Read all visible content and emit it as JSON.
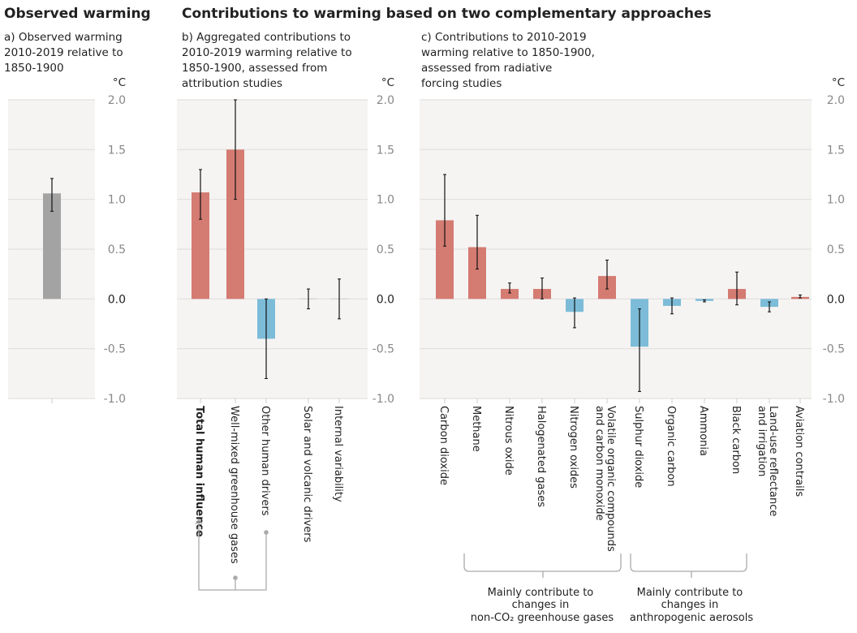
{
  "titles": {
    "left": "Observed warming",
    "right": "Contributions to warming based on two complementary approaches"
  },
  "unit": "°C",
  "colors": {
    "observed": "#a3a3a3",
    "warming": "#d47b72",
    "cooling": "#7cbcd8",
    "panel_bg": "#f5f4f3",
    "grid": "#e2e0dd"
  },
  "chart_data": [
    {
      "type": "bar",
      "panel": "a",
      "title_lines": [
        "a) Observed warming",
        "2010-2019 relative to",
        "1850-1900"
      ],
      "ylabel": "°C",
      "ylim": [
        -1.0,
        2.0
      ],
      "yticks": [
        "2.0",
        "1.5",
        "1.0",
        "0.5",
        "0.0",
        "-0.5",
        "-1.0"
      ],
      "grid": true,
      "categories": [
        ""
      ],
      "values": [
        1.06
      ],
      "error_low": [
        0.88
      ],
      "error_high": [
        1.21
      ]
    },
    {
      "type": "bar",
      "panel": "b",
      "title_lines": [
        "b) Aggregated contributions to",
        "2010-2019 warming relative to",
        "1850-1900, assessed from",
        "attribution studies"
      ],
      "ylabel": "°C",
      "ylim": [
        -1.0,
        2.0
      ],
      "yticks": [
        "2.0",
        "1.5",
        "1.0",
        "0.5",
        "0.0",
        "-0.5",
        "-1.0"
      ],
      "grid": true,
      "categories": [
        [
          "Total human influence"
        ],
        [
          "Well-mixed greenhouse gases"
        ],
        [
          "Other human drivers"
        ],
        [
          "Solar and volcanic drivers"
        ],
        [
          "Internal variability"
        ]
      ],
      "values": [
        1.07,
        1.5,
        -0.4,
        0.0,
        0.0
      ],
      "error_low": [
        0.8,
        1.0,
        -0.8,
        -0.1,
        -0.2
      ],
      "error_high": [
        1.3,
        2.0,
        0.0,
        0.1,
        0.2
      ]
    },
    {
      "type": "bar",
      "panel": "c",
      "title_lines": [
        "c) Contributions to 2010-2019",
        "warming relative to 1850-1900,",
        "assessed from radiative",
        "forcing studies"
      ],
      "ylabel": "°C",
      "ylim": [
        -1.0,
        2.0
      ],
      "yticks": [
        "2.0",
        "1.5",
        "1.0",
        "0.5",
        "0.0",
        "-0.5",
        "-1.0"
      ],
      "grid": true,
      "categories": [
        [
          "Carbon dioxide"
        ],
        [
          "Methane"
        ],
        [
          "Nitrous oxide"
        ],
        [
          "Halogenated gases"
        ],
        [
          "Nitrogen oxides"
        ],
        [
          "Volatile organic compounds",
          "and carbon monoxide"
        ],
        [
          "Sulphur dioxide"
        ],
        [
          "Organic carbon"
        ],
        [
          "Ammonia"
        ],
        [
          "Black carbon"
        ],
        [
          "Land-use reflectance",
          "and irrigation"
        ],
        [
          "Aviation contrails"
        ]
      ],
      "values": [
        0.79,
        0.52,
        0.1,
        0.1,
        -0.13,
        0.23,
        -0.48,
        -0.07,
        -0.02,
        0.1,
        -0.08,
        0.02
      ],
      "error_low": [
        0.53,
        0.3,
        0.06,
        0.0,
        -0.29,
        0.1,
        -0.93,
        -0.15,
        -0.03,
        -0.06,
        -0.13,
        0.01
      ],
      "error_high": [
        1.25,
        0.84,
        0.16,
        0.21,
        0.01,
        0.39,
        -0.1,
        0.01,
        -0.01,
        0.27,
        -0.03,
        0.04
      ]
    }
  ],
  "annotations": {
    "non_co2_lines": [
      "Mainly contribute to",
      "changes in",
      "non-CO₂ greenhouse gases"
    ],
    "aerosols_lines": [
      "Mainly contribute to",
      "changes in",
      "anthropogenic aerosols"
    ]
  }
}
